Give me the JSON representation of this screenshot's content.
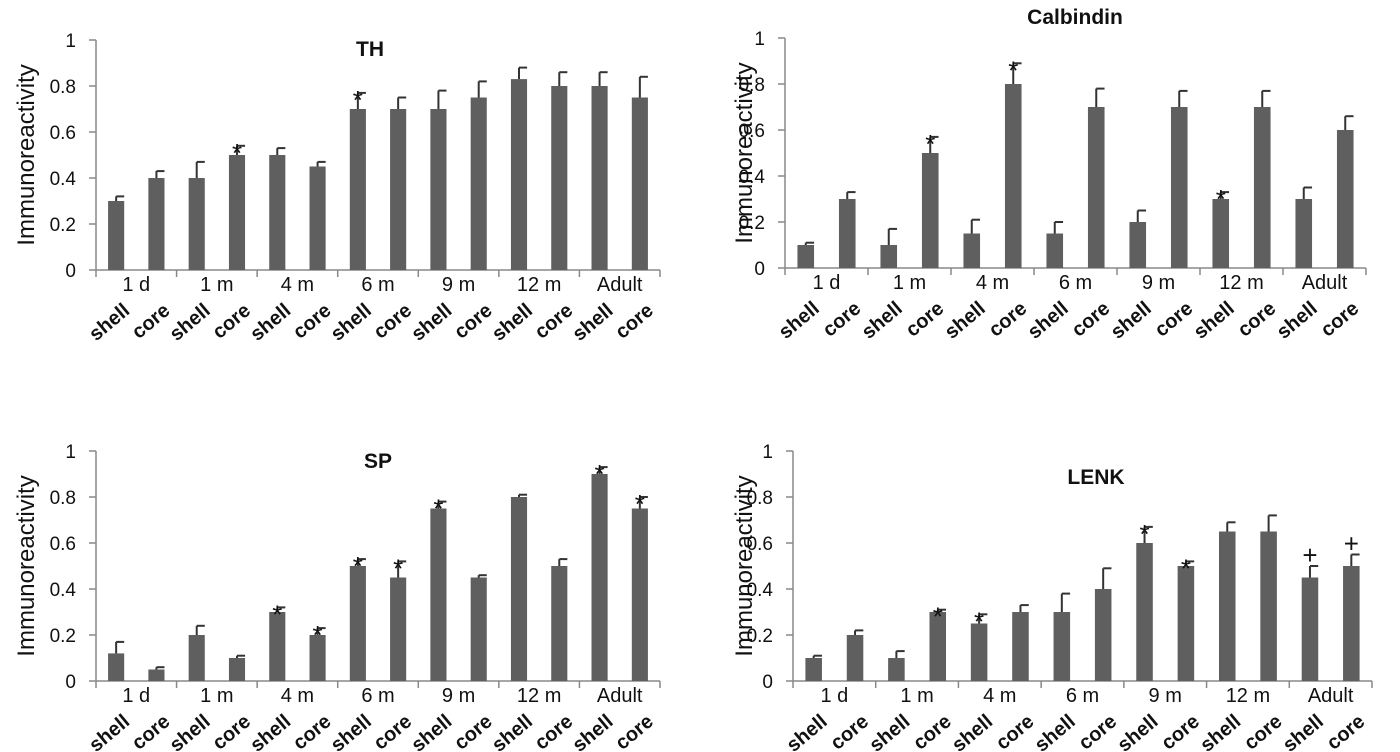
{
  "chart_data": [
    {
      "type": "bar",
      "title": "TH",
      "ylabel": "Immunoreactivity",
      "ylim": [
        0,
        1
      ],
      "yticks": [
        "0",
        "0.2",
        "0.4",
        "0.6",
        "0.8",
        "1"
      ],
      "categories": [
        "shell",
        "core",
        "shell",
        "core",
        "shell",
        "core",
        "shell",
        "core",
        "shell",
        "core",
        "shell",
        "core",
        "shell",
        "core"
      ],
      "groups": [
        "1 d",
        "1 m",
        "4 m",
        "6 m",
        "9 m",
        "12 m",
        "Adult"
      ],
      "values": [
        0.3,
        0.4,
        0.4,
        0.5,
        0.5,
        0.45,
        0.7,
        0.7,
        0.7,
        0.75,
        0.83,
        0.8,
        0.8,
        0.75
      ],
      "errors": [
        0.02,
        0.03,
        0.07,
        0.04,
        0.03,
        0.02,
        0.07,
        0.05,
        0.08,
        0.07,
        0.05,
        0.06,
        0.06,
        0.09
      ],
      "annotations": [
        "",
        "",
        "",
        "*",
        "",
        "",
        "*",
        "",
        "",
        "",
        "",
        "",
        "",
        ""
      ]
    },
    {
      "type": "bar",
      "title": "Calbindin",
      "ylabel": "Immunoreactivity",
      "ylim": [
        0,
        1
      ],
      "yticks": [
        "0",
        "0.2",
        "0.4",
        "0.6",
        "0.8",
        "1"
      ],
      "categories": [
        "shell",
        "core",
        "shell",
        "core",
        "shell",
        "core",
        "shell",
        "core",
        "shell",
        "core",
        "shell",
        "core",
        "shell",
        "core"
      ],
      "groups": [
        "1 d",
        "1 m",
        "4 m",
        "6 m",
        "9 m",
        "12 m",
        "Adult"
      ],
      "values": [
        0.1,
        0.3,
        0.1,
        0.5,
        0.15,
        0.8,
        0.15,
        0.7,
        0.2,
        0.7,
        0.3,
        0.7,
        0.3,
        0.6
      ],
      "errors": [
        0.01,
        0.03,
        0.07,
        0.07,
        0.06,
        0.09,
        0.05,
        0.08,
        0.05,
        0.07,
        0.03,
        0.07,
        0.05,
        0.06
      ],
      "annotations": [
        "",
        "",
        "",
        "*",
        "",
        "*",
        "",
        "",
        "",
        "",
        "*",
        "",
        "",
        ""
      ]
    },
    {
      "type": "bar",
      "title": "SP",
      "ylabel": "Immunoreactivity",
      "ylim": [
        0,
        1
      ],
      "yticks": [
        "0",
        "0.2",
        "0.4",
        "0.6",
        "0.8",
        "1"
      ],
      "categories": [
        "shell",
        "core",
        "shell",
        "core",
        "shell",
        "core",
        "shell",
        "core",
        "shell",
        "core",
        "shell",
        "core",
        "shell",
        "core"
      ],
      "groups": [
        "1 d",
        "1 m",
        "4 m",
        "6 m",
        "9 m",
        "12 m",
        "Adult"
      ],
      "values": [
        0.12,
        0.05,
        0.2,
        0.1,
        0.3,
        0.2,
        0.5,
        0.45,
        0.75,
        0.45,
        0.8,
        0.5,
        0.9,
        0.75
      ],
      "errors": [
        0.05,
        0.01,
        0.04,
        0.01,
        0.02,
        0.03,
        0.03,
        0.07,
        0.03,
        0.01,
        0.01,
        0.03,
        0.03,
        0.05
      ],
      "annotations": [
        "",
        "",
        "",
        "",
        "*",
        "*",
        "*",
        "*",
        "*",
        "",
        "",
        "",
        "*",
        "*"
      ]
    },
    {
      "type": "bar",
      "title": "LENK",
      "ylabel": "Immunoreactivity",
      "ylim": [
        0,
        1
      ],
      "yticks": [
        "0",
        "0.2",
        "0.4",
        "0.6",
        "0.8",
        "1"
      ],
      "categories": [
        "shell",
        "core",
        "shell",
        "core",
        "shell",
        "core",
        "shell",
        "core",
        "shell",
        "core",
        "shell",
        "core",
        "shell",
        "core"
      ],
      "groups": [
        "1 d",
        "1 m",
        "4 m",
        "6 m",
        "9 m",
        "12 m",
        "Adult"
      ],
      "values": [
        0.1,
        0.2,
        0.1,
        0.3,
        0.25,
        0.3,
        0.3,
        0.4,
        0.6,
        0.5,
        0.65,
        0.65,
        0.45,
        0.5
      ],
      "errors": [
        0.01,
        0.02,
        0.03,
        0.01,
        0.04,
        0.03,
        0.08,
        0.09,
        0.07,
        0.02,
        0.04,
        0.07,
        0.05,
        0.05
      ],
      "annotations": [
        "",
        "",
        "",
        "*",
        "*",
        "",
        "",
        "",
        "*",
        "*",
        "",
        "",
        "+",
        "+"
      ]
    }
  ]
}
